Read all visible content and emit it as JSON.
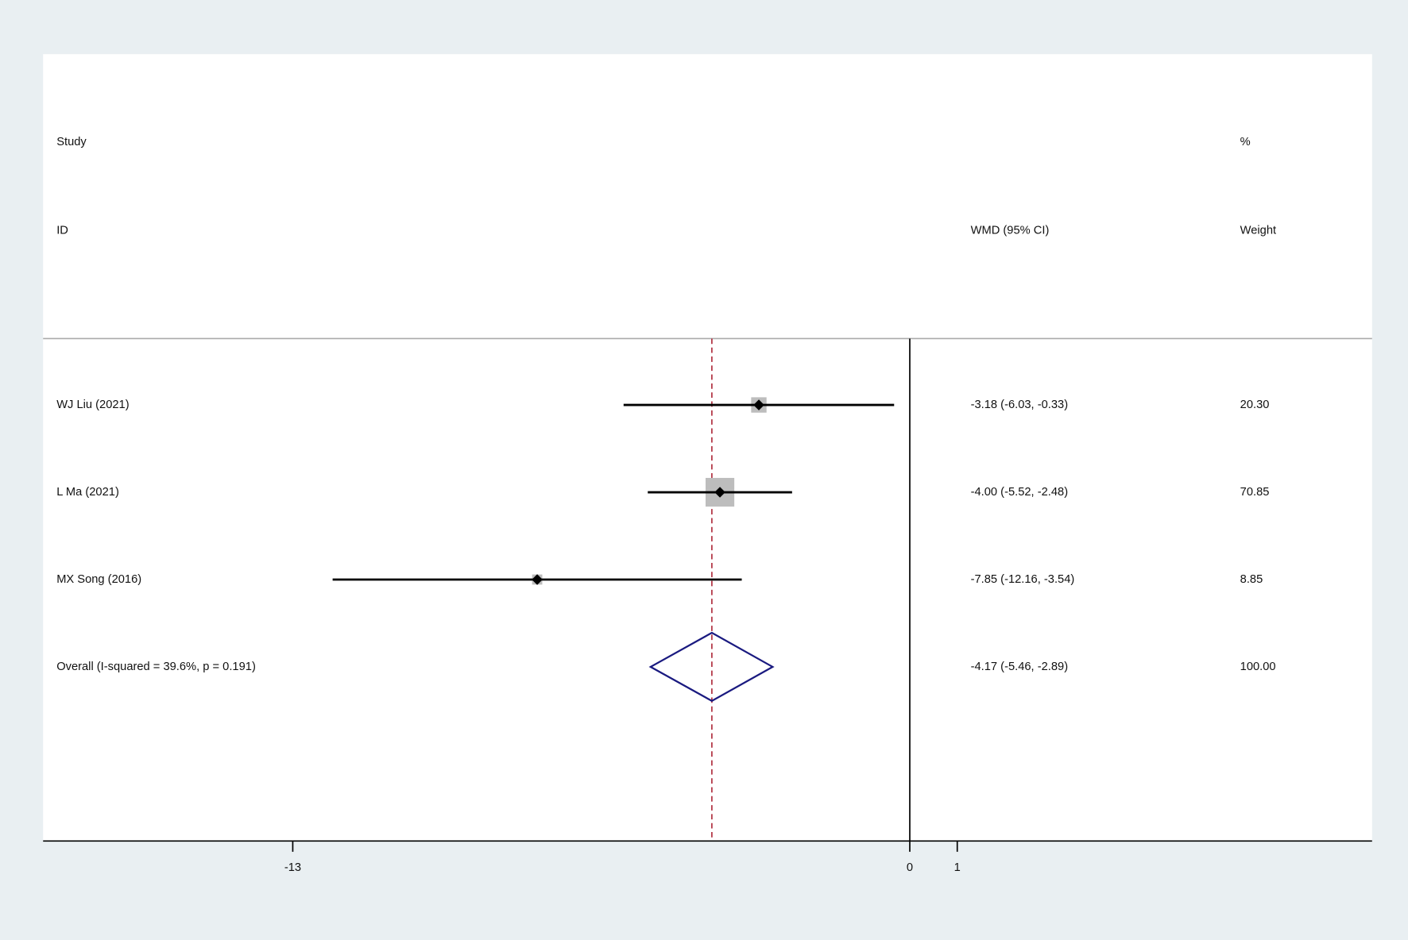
{
  "chart_data": {
    "type": "forest",
    "headers": {
      "study": "Study",
      "id": "ID",
      "effect": "WMD (95% CI)",
      "weight_top": "%",
      "weight": "Weight"
    },
    "categories": [
      "WJ Liu  (2021)",
      "L Ma  (2021)",
      "MX Song  (2016)",
      "Overall  (I-squared = 39.6%, p = 0.191)"
    ],
    "values": [
      -3.18,
      -4.0,
      -7.85,
      -4.17
    ],
    "lower": [
      -6.03,
      -5.52,
      -12.16,
      -5.46
    ],
    "upper": [
      -0.33,
      -2.48,
      -3.54,
      -2.89
    ],
    "value_labels": [
      "-3.18 (-6.03, -0.33)",
      "-4.00 (-5.52, -2.48)",
      "-7.85 (-12.16, -3.54)",
      "-4.17 (-5.46, -2.89)"
    ],
    "weights": [
      20.3,
      70.85,
      8.85,
      100
    ],
    "weight_labels": [
      "20.30",
      "70.85",
      "8.85",
      "100.00"
    ],
    "xlim": [
      -18.26,
      9.74
    ],
    "xticks": [
      -13,
      0,
      1
    ],
    "color": "#000000",
    "box_color": "#bdbdbd",
    "diamond_color": "#1a1a80",
    "reference_color": "#b03040"
  }
}
